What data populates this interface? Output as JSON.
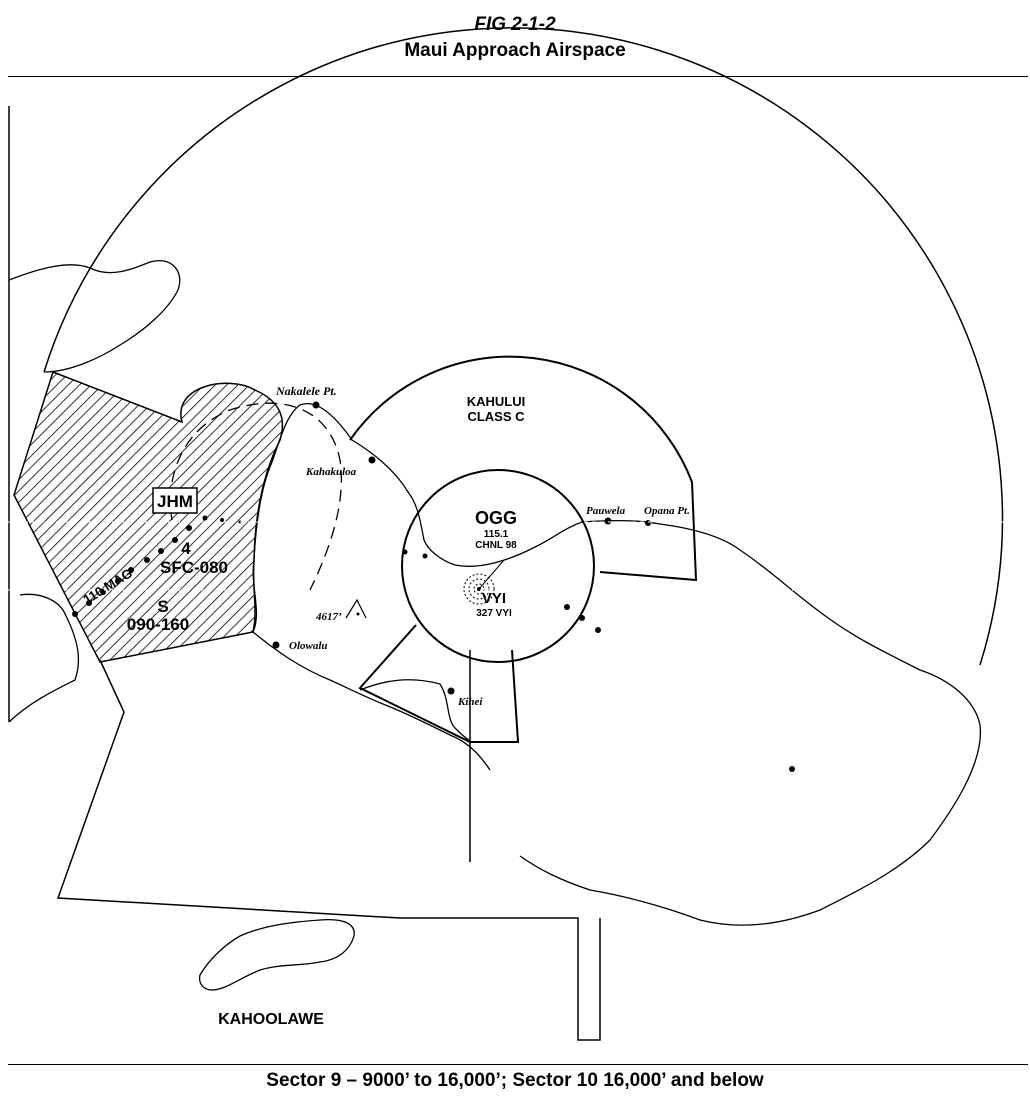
{
  "header": {
    "figure_number": "FIG 2-1-2",
    "title": "Maui Approach Airspace"
  },
  "footer": {
    "caption": "Sector 9 – 9000’ to 16,000’; Sector 10 16,000’ and below"
  },
  "map": {
    "airspace": {
      "name": "KAHULUI",
      "class": "CLASS C"
    },
    "navaids": {
      "vor": {
        "id": "OGG",
        "frequency": "115.1",
        "channel": "CHNL 98"
      },
      "ndb": {
        "id": "VYI",
        "label": "327 VYI"
      },
      "restricted": {
        "id": "JHM"
      }
    },
    "restricted_area": {
      "line1": "4",
      "line2": "SFC-080",
      "line3": "S",
      "line4": "090-160",
      "radial": "110 MAG"
    },
    "places": {
      "nakalele": "Nakalele Pt.",
      "kahakuloa": "Kahakuloa",
      "pauwela": "Pauwela",
      "opana": "Opana Pt.",
      "olowalu": "Olowalu",
      "kihei": "Kihei",
      "peak": "4617’",
      "kahoolawe": "KAHOOLAWE"
    }
  }
}
